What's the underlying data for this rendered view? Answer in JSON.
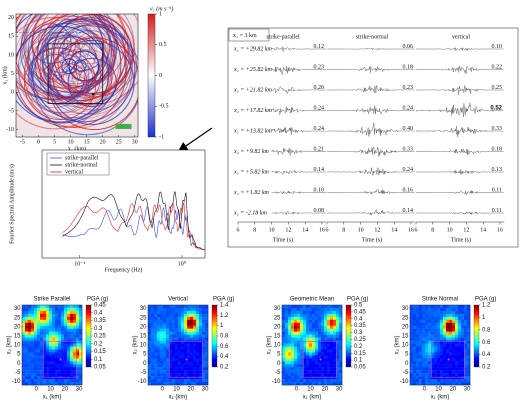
{
  "wavefield": {
    "xlabel": "x₁ (km)",
    "ylabel": "x₂ (km)",
    "xlim": [
      -7,
      31
    ],
    "ylim": [
      -12,
      21
    ],
    "xticks": [
      -5,
      0,
      5,
      10,
      15,
      20,
      25,
      30
    ],
    "yticks": [
      -10,
      -5,
      0,
      5,
      10,
      15,
      20
    ],
    "colorbar_label": "v₁ (m s⁻¹)",
    "clim": [
      -1,
      1
    ],
    "cticks": [
      -1,
      -0.5,
      0,
      0.5,
      1
    ]
  },
  "seismograms": {
    "header": "x₁ = 3 km",
    "columns": [
      "strike-parallel",
      "strike-normal",
      "vertical"
    ],
    "rows": [
      {
        "label": "x₂ = +29.82 km",
        "peaks": [
          "0.12",
          "0.06",
          "0.10"
        ]
      },
      {
        "label": "x₂ = +25.82 km",
        "peaks": [
          "0.23",
          "0.18",
          "0.22"
        ]
      },
      {
        "label": "x₂ = +21.82 km",
        "peaks": [
          "0.20",
          "0.23",
          "0.25"
        ]
      },
      {
        "label": "x₂ = +17.82 km",
        "peaks": [
          "0.24",
          "0.24",
          "0.52"
        ]
      },
      {
        "label": "x₂ = +13.82 km",
        "peaks": [
          "0.24",
          "0.40",
          "0.33"
        ]
      },
      {
        "label": "x₂ = +9.82 km",
        "peaks": [
          "0.21",
          "0.33",
          "0.18"
        ]
      },
      {
        "label": "x₂ = +5.82 km",
        "peaks": [
          "0.14",
          "0.24",
          "0.13"
        ]
      },
      {
        "label": "x₂ = +1.82 km",
        "peaks": [
          "0.10",
          "0.16",
          "0.11"
        ]
      },
      {
        "label": "x₂ = -2.18 km",
        "peaks": [
          "0.08",
          "0.14",
          "0.11"
        ]
      }
    ],
    "bold_cell": [
      3,
      2
    ],
    "xlim": [
      6,
      16.5
    ],
    "xticks": [
      6,
      8,
      10,
      12,
      14,
      16
    ],
    "xlabel": "Time (s)"
  },
  "spectrum": {
    "ylabel": "Fourier Spectral Amplitude (m/s)",
    "xlabel": "Frequency (Hz)",
    "log_x": true,
    "xlim": [
      0.0427,
      1.68
    ],
    "xticks": [
      {
        "value": 0.1,
        "label": "10⁻¹"
      },
      {
        "value": 1,
        "label": "10⁰"
      }
    ],
    "series": [
      {
        "name": "strike-parallel",
        "color": "#3a55d6"
      },
      {
        "name": "strike-normal",
        "color": "#111111"
      },
      {
        "name": "vertical",
        "color": "#d83030"
      }
    ]
  },
  "map_axes": {
    "xlabel": "x₁ (km)",
    "ylabel": "x₂ (km)",
    "xlim": [
      -10,
      32
    ],
    "ylim": [
      -12,
      32
    ],
    "xticks": [
      0,
      10,
      20,
      30
    ],
    "yticks": [
      -10,
      -5,
      0,
      5,
      10,
      15,
      20,
      25,
      30
    ]
  },
  "pga_maps": [
    {
      "title": "Strike Parallel",
      "colorbar_label": "PGA (g)",
      "clim": [
        0.05,
        0.45
      ],
      "cticks": [
        0.05,
        0.1,
        0.15,
        0.2,
        0.25,
        0.3,
        0.35,
        0.4,
        0.45
      ]
    },
    {
      "title": "Vertical",
      "colorbar_label": "PGA (g)",
      "clim": [
        0.2,
        1.4
      ],
      "cticks": [
        0.2,
        0.4,
        0.6,
        0.8,
        1,
        1.2,
        1.4
      ]
    },
    {
      "title": "Geometric Mean",
      "colorbar_label": "PGA (g)",
      "clim": [
        0.05,
        0.5
      ],
      "cticks": [
        0.05,
        0.1,
        0.15,
        0.2,
        0.25,
        0.3,
        0.35,
        0.4,
        0.45,
        0.5
      ]
    },
    {
      "title": "Strike Normal",
      "colorbar_label": "PGA (g)",
      "clim": [
        0.2,
        1.2
      ],
      "cticks": [
        0.2,
        0.4,
        0.6,
        0.8,
        1,
        1.2
      ]
    }
  ]
}
